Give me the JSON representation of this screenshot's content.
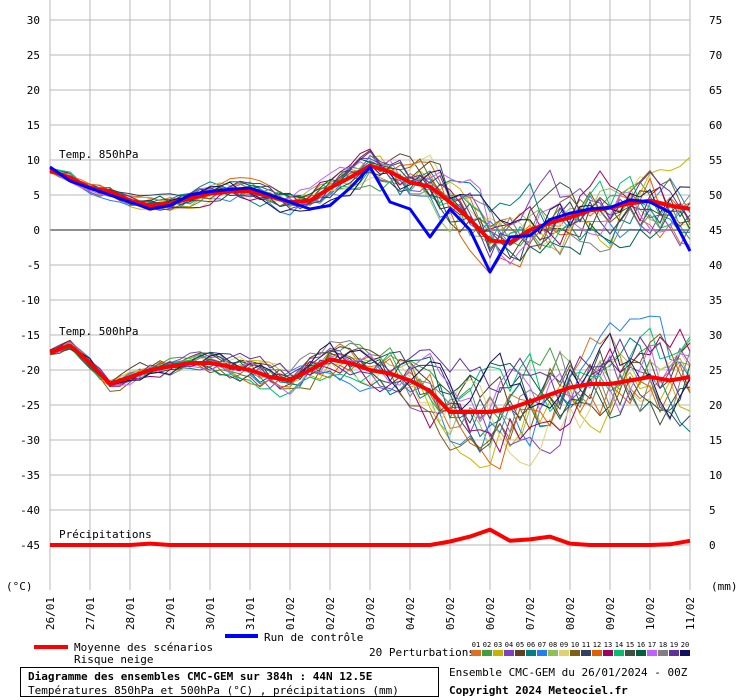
{
  "chart_data": {
    "type": "line",
    "title": "Diagramme des ensembles CMC-GEM sur 384h : 44N 12.5E",
    "subtitle": "Températures 850hPa et 500hPa (°C) , précipitations (mm)",
    "ensemble_info": "Ensemble CMC-GEM du 26/01/2024 - 00Z",
    "copyright": "Copyright 2024 Meteociel.fr",
    "left_axis": {
      "unit_label": "(°C)",
      "min": -45,
      "max": 30,
      "step": 5,
      "ticks": [
        "30",
        "25",
        "20",
        "15",
        "10",
        "5",
        "0",
        "-5",
        "-10",
        "-15",
        "-20",
        "-25",
        "-30",
        "-35",
        "-40",
        "-45"
      ]
    },
    "right_axis": {
      "unit_label": "(mm)",
      "min": 0,
      "max": 75,
      "step": 5,
      "ticks": [
        "75",
        "70",
        "65",
        "60",
        "55",
        "50",
        "45",
        "40",
        "35",
        "30",
        "25",
        "20",
        "15",
        "10",
        "5",
        "0"
      ]
    },
    "x_ticks": [
      "26/01",
      "27/01",
      "28/01",
      "29/01",
      "30/01",
      "31/01",
      "01/02",
      "02/02",
      "03/02",
      "04/02",
      "05/02",
      "06/02",
      "07/02",
      "08/02",
      "09/02",
      "10/02",
      "11/02"
    ],
    "x_range_hours": [
      0,
      384
    ],
    "panel_labels": {
      "t850": "Temp. 850hPa",
      "t500": "Temp. 500hPa",
      "precip": "Précipitations"
    },
    "legend": {
      "mean": "Moyenne des scénarios",
      "snow": "Risque neige",
      "control": "Run de contrôle",
      "perturbations": "20 Perturbations",
      "perturbation_numbers": [
        "01",
        "02",
        "03",
        "04",
        "05",
        "06",
        "07",
        "08",
        "09",
        "10",
        "11",
        "12",
        "13",
        "14",
        "15",
        "16",
        "17",
        "18",
        "19",
        "20"
      ]
    },
    "colors": {
      "mean": "#ff0000",
      "control": "#0000ff",
      "perturbations": [
        "#e07020",
        "#40a040",
        "#c8b400",
        "#8040c0",
        "#604020",
        "#008080",
        "#2080f0",
        "#90c050",
        "#e0d070",
        "#806010",
        "#304060",
        "#e06000",
        "#a00060",
        "#00c070",
        "#405040",
        "#006040",
        "#c060ff",
        "#808080",
        "#6030a0",
        "#101060"
      ]
    },
    "series": [
      {
        "name": "Moyenne T850",
        "group": "t850",
        "x": [
          0,
          12,
          24,
          36,
          48,
          60,
          72,
          84,
          96,
          108,
          120,
          132,
          144,
          156,
          168,
          180,
          192,
          204,
          216,
          228,
          240,
          252,
          264,
          276,
          288,
          300,
          312,
          324,
          336,
          348,
          360,
          372,
          384
        ],
        "values": [
          8.5,
          7.5,
          6,
          5.5,
          4.2,
          3.5,
          3.8,
          4.5,
          5.2,
          5.5,
          5.5,
          4.8,
          4.0,
          4.2,
          6,
          7.5,
          9.2,
          8.3,
          6.8,
          6.2,
          4,
          1.5,
          -1.5,
          -1.8,
          0,
          1,
          1.8,
          2.8,
          3.2,
          3.8,
          4.2,
          3.5,
          3
        ]
      },
      {
        "name": "Contrôle T850",
        "group": "t850",
        "x": [
          0,
          12,
          24,
          36,
          48,
          60,
          72,
          84,
          96,
          108,
          120,
          132,
          144,
          156,
          168,
          180,
          192,
          204,
          216,
          228,
          240,
          252,
          264,
          276,
          288,
          300,
          312,
          324,
          336,
          348,
          360,
          372,
          384
        ],
        "values": [
          9,
          7,
          6,
          5,
          4,
          3,
          3.5,
          5,
          5.5,
          5.8,
          6,
          5,
          4,
          3,
          3.5,
          6,
          9,
          4,
          3,
          -1,
          3,
          0,
          -6,
          -1,
          -0.8,
          1.5,
          2.4,
          3,
          3.2,
          4.3,
          4,
          2.5,
          -3
        ]
      },
      {
        "name": "Moyenne T500",
        "group": "t500",
        "x": [
          0,
          12,
          24,
          36,
          48,
          60,
          72,
          84,
          96,
          108,
          120,
          132,
          144,
          156,
          168,
          180,
          192,
          204,
          216,
          228,
          240,
          252,
          264,
          276,
          288,
          300,
          312,
          324,
          336,
          348,
          360,
          372,
          384
        ],
        "values": [
          -17.5,
          -16.5,
          -19,
          -22,
          -21,
          -20,
          -19.5,
          -19,
          -19,
          -19.5,
          -20,
          -21,
          -21.5,
          -20,
          -18.5,
          -19,
          -20,
          -20.5,
          -21.5,
          -23,
          -26,
          -26,
          -26,
          -25.5,
          -24.5,
          -23.5,
          -22.5,
          -22,
          -22,
          -21.5,
          -21,
          -21.5,
          -21
        ]
      },
      {
        "name": "Moyenne précipitations",
        "group": "precip",
        "x": [
          0,
          12,
          24,
          36,
          48,
          60,
          72,
          84,
          96,
          108,
          120,
          132,
          144,
          156,
          168,
          180,
          192,
          204,
          216,
          228,
          240,
          252,
          264,
          276,
          288,
          300,
          312,
          324,
          336,
          348,
          360,
          372,
          384
        ],
        "values": [
          0,
          0,
          0,
          0,
          0,
          0.2,
          0,
          0,
          0,
          0,
          0,
          0,
          0,
          0,
          0,
          0,
          0,
          0,
          0,
          0,
          0.5,
          1.2,
          2.2,
          0.6,
          0.8,
          1.2,
          0.2,
          0,
          0,
          0,
          0,
          0.1,
          0.6
        ]
      }
    ]
  }
}
